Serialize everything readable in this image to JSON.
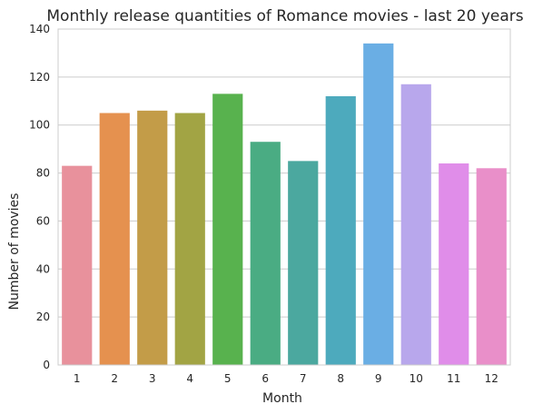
{
  "chart_data": {
    "type": "bar",
    "title": "Monthly release quantities of Romance movies - last 20 years",
    "xlabel": "Month",
    "ylabel": "Number of movies",
    "categories": [
      "1",
      "2",
      "3",
      "4",
      "5",
      "6",
      "7",
      "8",
      "9",
      "10",
      "11",
      "12"
    ],
    "values": [
      83,
      105,
      106,
      105,
      113,
      93,
      85,
      112,
      134,
      117,
      84,
      82
    ],
    "colors": [
      "#e8919c",
      "#e5914f",
      "#c39c48",
      "#a2a444",
      "#58b24e",
      "#4aac83",
      "#4ba89f",
      "#4daabd",
      "#6aaee4",
      "#b8a7ec",
      "#e08de9",
      "#e98fc9"
    ],
    "ylim": [
      0,
      140
    ],
    "yticks": [
      "0",
      "20",
      "40",
      "60",
      "80",
      "100",
      "120",
      "140"
    ],
    "grid": true,
    "legend": "none"
  }
}
